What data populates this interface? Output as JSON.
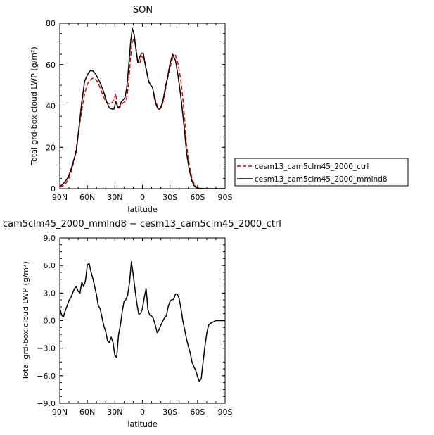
{
  "chart_data": [
    {
      "type": "line",
      "title": "SON",
      "xlabel": "latitude",
      "ylabel": "Total grd-box cloud LWP  (g/m²)",
      "xlim": [
        -90,
        90
      ],
      "ylim": [
        0,
        80
      ],
      "x_tick_values": [
        -90,
        -60,
        -30,
        0,
        30,
        60,
        90
      ],
      "x_tick_labels": [
        "90N",
        "60N",
        "30N",
        "0",
        "30S",
        "60S",
        "90S"
      ],
      "y_tick_values": [
        0,
        20,
        40,
        60,
        80
      ],
      "y_tick_labels": [
        "0",
        "20",
        "40",
        "60",
        "80"
      ],
      "legend_position": "right",
      "series": [
        {
          "name": "cesm13_cam5clm45_2000_ctrl",
          "color": "#dd0000",
          "dash": "dashed",
          "x": [
            -90,
            -87,
            -84,
            -81,
            -78,
            -75,
            -72,
            -69,
            -66,
            -63,
            -60,
            -57,
            -54,
            -51,
            -48,
            -45,
            -42,
            -39,
            -36,
            -33,
            -31,
            -29,
            -27,
            -25,
            -23,
            -21,
            -19,
            -17,
            -15,
            -13,
            -11,
            -9,
            -7,
            -5,
            -3,
            -1,
            1,
            3,
            5,
            7,
            9,
            11,
            13,
            15,
            17,
            19,
            21,
            23,
            25,
            27,
            30,
            33,
            36,
            39,
            42,
            44,
            46,
            48,
            51,
            54,
            57,
            60,
            63,
            66,
            69,
            72,
            75,
            78,
            81,
            84,
            87,
            90
          ],
          "y": [
            0.8,
            1.2,
            2.2,
            4.2,
            7.5,
            12.5,
            20,
            29,
            38,
            46,
            50.5,
            52.5,
            53.5,
            53,
            51,
            47.5,
            44,
            41.5,
            41,
            41.5,
            43,
            46,
            39,
            39,
            40.5,
            41.5,
            42,
            44,
            51,
            63,
            71,
            72.5,
            68,
            61,
            60.5,
            64,
            63,
            61,
            55.5,
            52,
            50,
            49,
            45,
            41.5,
            39,
            38.5,
            39.5,
            43,
            47.5,
            52.5,
            58.5,
            63.5,
            64.5,
            60,
            52,
            44,
            33,
            21,
            11.5,
            5,
            1.5,
            0.5,
            0.2,
            0.1,
            0,
            0,
            0,
            0,
            0,
            0,
            0,
            0
          ]
        },
        {
          "name": "cesm13_cam5clm45_2000_mmlnd8",
          "color": "#000000",
          "dash": "solid",
          "x": [
            -90,
            -87,
            -84,
            -81,
            -78,
            -75,
            -72,
            -69,
            -66,
            -63,
            -60,
            -57,
            -54,
            -51,
            -48,
            -45,
            -42,
            -39,
            -36,
            -33,
            -31,
            -29,
            -27,
            -25,
            -23,
            -21,
            -19,
            -17,
            -15,
            -13,
            -11,
            -9,
            -7,
            -5,
            -3,
            -1,
            1,
            3,
            5,
            7,
            9,
            11,
            13,
            15,
            17,
            19,
            21,
            23,
            25,
            27,
            30,
            33,
            36,
            39,
            42,
            44,
            46,
            48,
            51,
            54,
            57,
            60,
            63,
            66,
            69,
            72,
            75,
            78,
            81,
            84,
            87,
            90
          ],
          "y": [
            1.2,
            2,
            3.5,
            5.5,
            9,
            13.5,
            18,
            30,
            42,
            52,
            55,
            57,
            57,
            55.5,
            53,
            50,
            46.5,
            42,
            39,
            38.5,
            38.5,
            42,
            39.5,
            39.5,
            42,
            43,
            44,
            49,
            59,
            70,
            77.5,
            74.5,
            67,
            61,
            63.5,
            65.5,
            65.5,
            60,
            56,
            51.5,
            50,
            49,
            44,
            40.5,
            38.5,
            38.5,
            40.5,
            44,
            49,
            53,
            60.5,
            65,
            62,
            54,
            44,
            36,
            27,
            17.5,
            9,
            3.5,
            1,
            0.3,
            0.1,
            0,
            0,
            0,
            0,
            0,
            0,
            0,
            0,
            0
          ]
        }
      ]
    },
    {
      "type": "line",
      "title": "cam5clm45_2000_mmlnd8 − cesm13_cam5clm45_2000_ctrl",
      "xlabel": "latitude",
      "ylabel": "Total grd-box cloud LWP  (g/m²)",
      "xlim": [
        -90,
        90
      ],
      "ylim": [
        -9,
        9
      ],
      "x_tick_values": [
        -90,
        -60,
        -30,
        0,
        30,
        60,
        90
      ],
      "x_tick_labels": [
        "90N",
        "60N",
        "30N",
        "0",
        "30S",
        "60S",
        "90S"
      ],
      "y_tick_values": [
        -9,
        -6,
        -3,
        0,
        3,
        6,
        9
      ],
      "y_tick_labels": [
        "−9.0",
        "−6.0",
        "−3.0",
        "0.0",
        "3.0",
        "6.0",
        "9.0"
      ],
      "series": [
        {
          "color": "#000000",
          "dash": "solid",
          "x": [
            -90,
            -88,
            -86,
            -84,
            -82,
            -80,
            -78,
            -76,
            -74,
            -72,
            -70,
            -68,
            -66,
            -64,
            -62,
            -60,
            -58,
            -56,
            -54,
            -52,
            -50,
            -48,
            -46,
            -44,
            -42,
            -40,
            -38,
            -36,
            -34,
            -32,
            -30,
            -28,
            -26,
            -24,
            -22,
            -20,
            -18,
            -16,
            -14,
            -12,
            -10,
            -8,
            -6,
            -4,
            -2,
            0,
            2,
            4,
            6,
            8,
            10,
            12,
            14,
            16,
            18,
            20,
            22,
            24,
            26,
            28,
            30,
            32,
            34,
            36,
            38,
            40,
            42,
            44,
            46,
            48,
            50,
            52,
            54,
            56,
            58,
            60,
            62,
            64,
            66,
            68,
            70,
            72,
            74,
            76,
            78,
            80,
            85,
            90
          ],
          "y": [
            1.4,
            0.6,
            0.4,
            1.1,
            1.6,
            2.2,
            2.5,
            3.0,
            3.5,
            3.7,
            3.2,
            3.0,
            4.2,
            3.7,
            4.4,
            6.1,
            6.2,
            5.3,
            4.6,
            3.7,
            2.8,
            1.6,
            1.3,
            0.3,
            -0.6,
            -1.2,
            -2.2,
            -2.4,
            -1.8,
            -2.4,
            -3.8,
            -4.0,
            -1.5,
            -0.5,
            1.0,
            2.1,
            2.3,
            2.8,
            4.2,
            6.4,
            5.0,
            3.3,
            1.8,
            0.7,
            0.8,
            1.3,
            2.5,
            3.5,
            1.2,
            0.6,
            0.5,
            0.2,
            -0.5,
            -1.3,
            -1.0,
            -0.5,
            -0.1,
            0.3,
            0.5,
            1.5,
            2.1,
            2.3,
            2.3,
            2.9,
            2.9,
            2.4,
            1.3,
            0.0,
            -1.0,
            -2.0,
            -2.8,
            -3.5,
            -4.5,
            -5.0,
            -5.4,
            -6.1,
            -6.6,
            -6.3,
            -4.5,
            -2.8,
            -1.4,
            -0.5,
            -0.3,
            -0.2,
            -0.1,
            0.0,
            0.0,
            0.0
          ]
        }
      ]
    }
  ]
}
